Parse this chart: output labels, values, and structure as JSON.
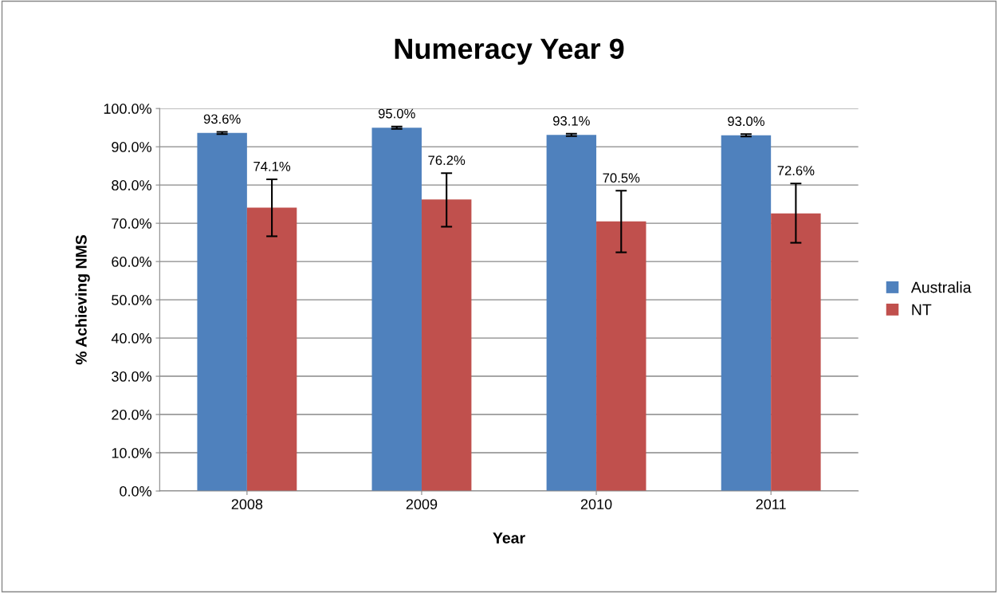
{
  "chart_data": {
    "type": "bar",
    "title": "Numeracy Year 9",
    "xlabel": "Year",
    "ylabel": "% Achieving NMS",
    "categories": [
      "2008",
      "2009",
      "2010",
      "2011"
    ],
    "series": [
      {
        "name": "Australia",
        "color": "#4f81bd",
        "values": [
          93.6,
          95.0,
          93.1,
          93.0
        ],
        "value_labels": [
          "93.6%",
          "95.0%",
          "93.1%",
          "93.0%"
        ],
        "errors": [
          0.3,
          0.3,
          0.3,
          0.3
        ]
      },
      {
        "name": "NT",
        "color": "#c0504d",
        "values": [
          74.1,
          76.2,
          70.5,
          72.6
        ],
        "value_labels": [
          "74.1%",
          "76.2%",
          "70.5%",
          "72.6%"
        ],
        "errors": [
          [
            66.6,
            81.5
          ],
          [
            69.1,
            83.1
          ],
          [
            62.4,
            78.5
          ],
          [
            64.9,
            80.4
          ]
        ]
      }
    ],
    "ylim": [
      0,
      100
    ],
    "yticks": [
      {
        "value": 0,
        "label": "0.0%"
      },
      {
        "value": 10,
        "label": "10.0%"
      },
      {
        "value": 20,
        "label": "20.0%"
      },
      {
        "value": 30,
        "label": "30.0%"
      },
      {
        "value": 40,
        "label": "40.0%"
      },
      {
        "value": 50,
        "label": "50.0%"
      },
      {
        "value": 60,
        "label": "60.0%"
      },
      {
        "value": 70,
        "label": "70.0%"
      },
      {
        "value": 80,
        "label": "80.0%"
      },
      {
        "value": 90,
        "label": "90.0%"
      },
      {
        "value": 100,
        "label": "100.0%"
      }
    ],
    "grid": "y",
    "legend": "right"
  }
}
